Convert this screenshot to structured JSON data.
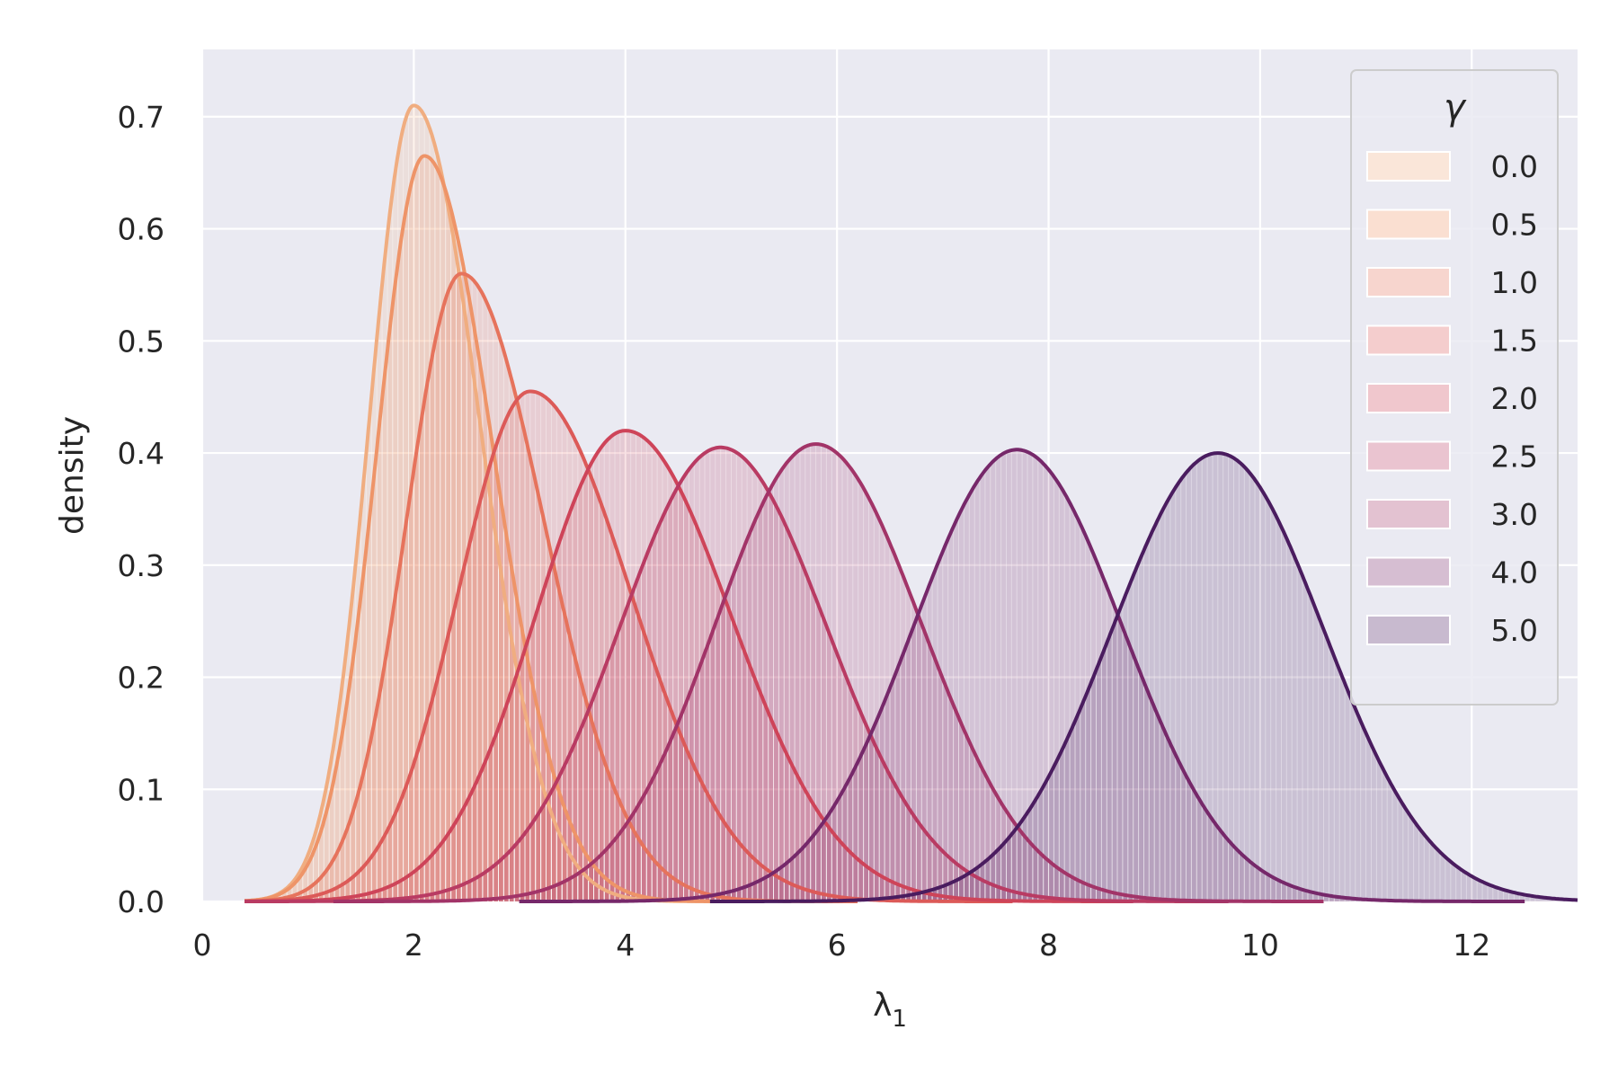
{
  "chart_data": {
    "type": "area",
    "subtype": "histogram with KDE curves",
    "title": "",
    "xlabel": "λ",
    "xlabel_subscript": "1",
    "ylabel": "density",
    "xlim": [
      0,
      13
    ],
    "ylim": [
      0,
      0.76
    ],
    "xticks": [
      0,
      2,
      4,
      6,
      8,
      10,
      12
    ],
    "yticks": [
      0.0,
      0.1,
      0.2,
      0.3,
      0.4,
      0.5,
      0.6,
      0.7
    ],
    "xtick_labels": [
      "0",
      "2",
      "4",
      "6",
      "8",
      "10",
      "12"
    ],
    "ytick_labels": [
      "0.0",
      "0.1",
      "0.2",
      "0.3",
      "0.4",
      "0.5",
      "0.6",
      "0.7"
    ],
    "grid": true,
    "background": "#eaeaf2",
    "legend": {
      "title": "γ",
      "position": "top-right"
    },
    "series": [
      {
        "name": "0.0",
        "color": "#f0ad80",
        "peak_x": 2.0,
        "peak_density": 0.71,
        "left_spread": 0.42,
        "right_spread": 0.62
      },
      {
        "name": "0.5",
        "color": "#ee9468",
        "peak_x": 2.1,
        "peak_density": 0.665,
        "left_spread": 0.45,
        "right_spread": 0.65
      },
      {
        "name": "1.0",
        "color": "#e6735c",
        "peak_x": 2.45,
        "peak_density": 0.56,
        "left_spread": 0.52,
        "right_spread": 0.78
      },
      {
        "name": "1.5",
        "color": "#dc5a58",
        "peak_x": 3.1,
        "peak_density": 0.455,
        "left_spread": 0.68,
        "right_spread": 0.95
      },
      {
        "name": "2.0",
        "color": "#ce4459",
        "peak_x": 4.0,
        "peak_density": 0.42,
        "left_spread": 0.85,
        "right_spread": 1.0
      },
      {
        "name": "2.5",
        "color": "#b93b63",
        "peak_x": 4.9,
        "peak_density": 0.405,
        "left_spread": 0.95,
        "right_spread": 1.0
      },
      {
        "name": "3.0",
        "color": "#a23468",
        "peak_x": 5.8,
        "peak_density": 0.408,
        "left_spread": 0.95,
        "right_spread": 1.0
      },
      {
        "name": "4.0",
        "color": "#76286a",
        "peak_x": 7.7,
        "peak_density": 0.403,
        "left_spread": 0.98,
        "right_spread": 1.0
      },
      {
        "name": "5.0",
        "color": "#4a1c5f",
        "peak_x": 9.6,
        "peak_density": 0.4,
        "left_spread": 1.0,
        "right_spread": 1.0
      }
    ]
  }
}
